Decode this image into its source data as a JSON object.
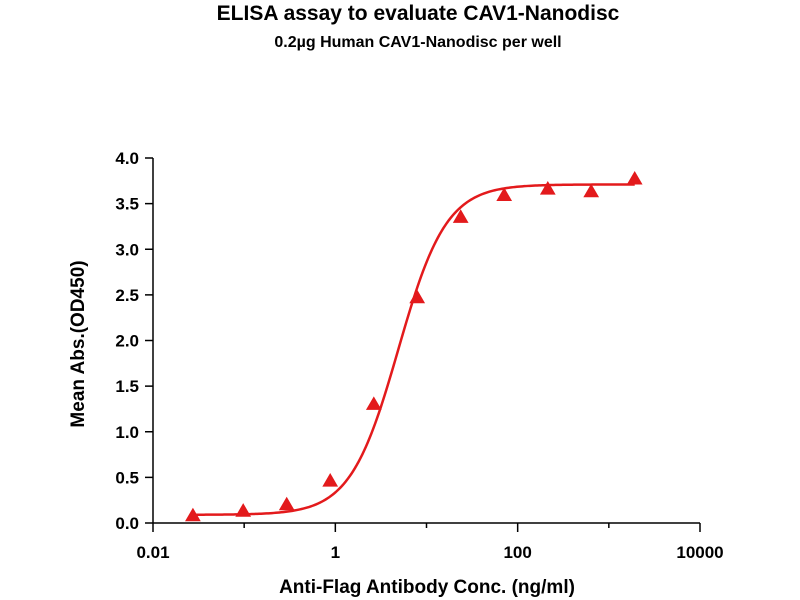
{
  "chart_data": {
    "type": "scatter",
    "title": "ELISA assay to evaluate CAV1-Nanodisc",
    "subtitle": "0.2µg Human CAV1-Nanodisc per well",
    "xlabel": "Anti-Flag Antibody Conc. (ng/ml)",
    "ylabel": "Mean Abs.(OD450)",
    "x_scale": "log",
    "xlim": [
      0.01,
      10000
    ],
    "ylim": [
      0,
      4.0
    ],
    "x_ticks": [
      0.01,
      1,
      100,
      10000
    ],
    "x_tick_labels": [
      "0.01",
      "1",
      "100",
      "10000"
    ],
    "y_ticks": [
      0,
      0.5,
      1.0,
      1.5,
      2.0,
      2.5,
      3.0,
      3.5,
      4.0
    ],
    "y_tick_labels": [
      "0.0",
      "0.5",
      "1.0",
      "1.5",
      "2.0",
      "2.5",
      "3.0",
      "3.5",
      "4.0"
    ],
    "grid": false,
    "color": "#e31a1c",
    "marker": "triangle",
    "series": [
      {
        "x": [
          0.0274,
          0.0977,
          0.293,
          0.879,
          2.64,
          7.91,
          23.7,
          71.2,
          214,
          641,
          1923
        ],
        "y": [
          0.08,
          0.13,
          0.2,
          0.46,
          1.3,
          2.47,
          3.35,
          3.59,
          3.66,
          3.63,
          3.77
        ],
        "fit": "4PL",
        "fit_params": {
          "bottom": 0.09,
          "top": 3.71,
          "ec50": 4.9,
          "hill": 1.65
        }
      }
    ]
  }
}
